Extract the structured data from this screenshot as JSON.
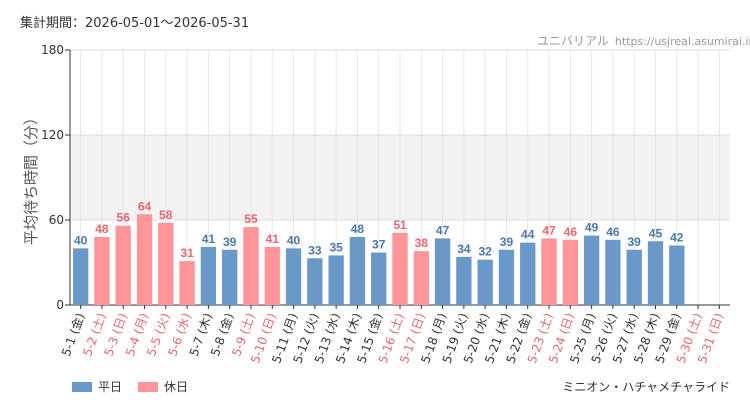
{
  "header": {
    "period_label": "集計期間：2026-05-01～2026-05-31",
    "site_name": "ユニバリアル",
    "site_url": "https://usjreal.asumirai.info"
  },
  "footer": {
    "attraction_name": "ミニオン・ハチャメチャライド"
  },
  "colors": {
    "weekday": "#6a98c8",
    "holiday": "#ff9499",
    "weekday_label": "#4a78a8",
    "holiday_label": "#e8666e",
    "band": "#f2f2f2"
  },
  "chart_data": {
    "type": "bar",
    "ylabel": "平均待ち時間（分）",
    "ylim": [
      0,
      180
    ],
    "yticks": [
      0,
      60,
      120,
      180
    ],
    "shaded_band": [
      60,
      120
    ],
    "legend": [
      {
        "name": "平日",
        "type": "weekday"
      },
      {
        "name": "休日",
        "type": "holiday"
      }
    ],
    "categories": [
      "5-1 (金)",
      "5-2 (土)",
      "5-3 (日)",
      "5-4 (月)",
      "5-5 (火)",
      "5-6 (水)",
      "5-7 (木)",
      "5-8 (金)",
      "5-9 (土)",
      "5-10 (日)",
      "5-11 (月)",
      "5-12 (火)",
      "5-13 (水)",
      "5-14 (木)",
      "5-15 (金)",
      "5-16 (土)",
      "5-17 (日)",
      "5-18 (月)",
      "5-19 (火)",
      "5-20 (水)",
      "5-21 (木)",
      "5-22 (金)",
      "5-23 (土)",
      "5-24 (日)",
      "5-25 (月)",
      "5-26 (火)",
      "5-27 (水)",
      "5-28 (木)",
      "5-29 (金)",
      "5-30 (土)",
      "5-31 (日)"
    ],
    "day_types": [
      "weekday",
      "holiday",
      "holiday",
      "holiday",
      "holiday",
      "holiday",
      "weekday",
      "weekday",
      "holiday",
      "holiday",
      "weekday",
      "weekday",
      "weekday",
      "weekday",
      "weekday",
      "holiday",
      "holiday",
      "weekday",
      "weekday",
      "weekday",
      "weekday",
      "weekday",
      "holiday",
      "holiday",
      "weekday",
      "weekday",
      "weekday",
      "weekday",
      "weekday",
      "holiday",
      "holiday"
    ],
    "values": [
      40,
      48,
      56,
      64,
      58,
      31,
      41,
      39,
      55,
      41,
      40,
      33,
      35,
      48,
      37,
      51,
      38,
      47,
      34,
      32,
      39,
      44,
      47,
      46,
      49,
      46,
      39,
      45,
      42,
      null,
      null
    ]
  }
}
